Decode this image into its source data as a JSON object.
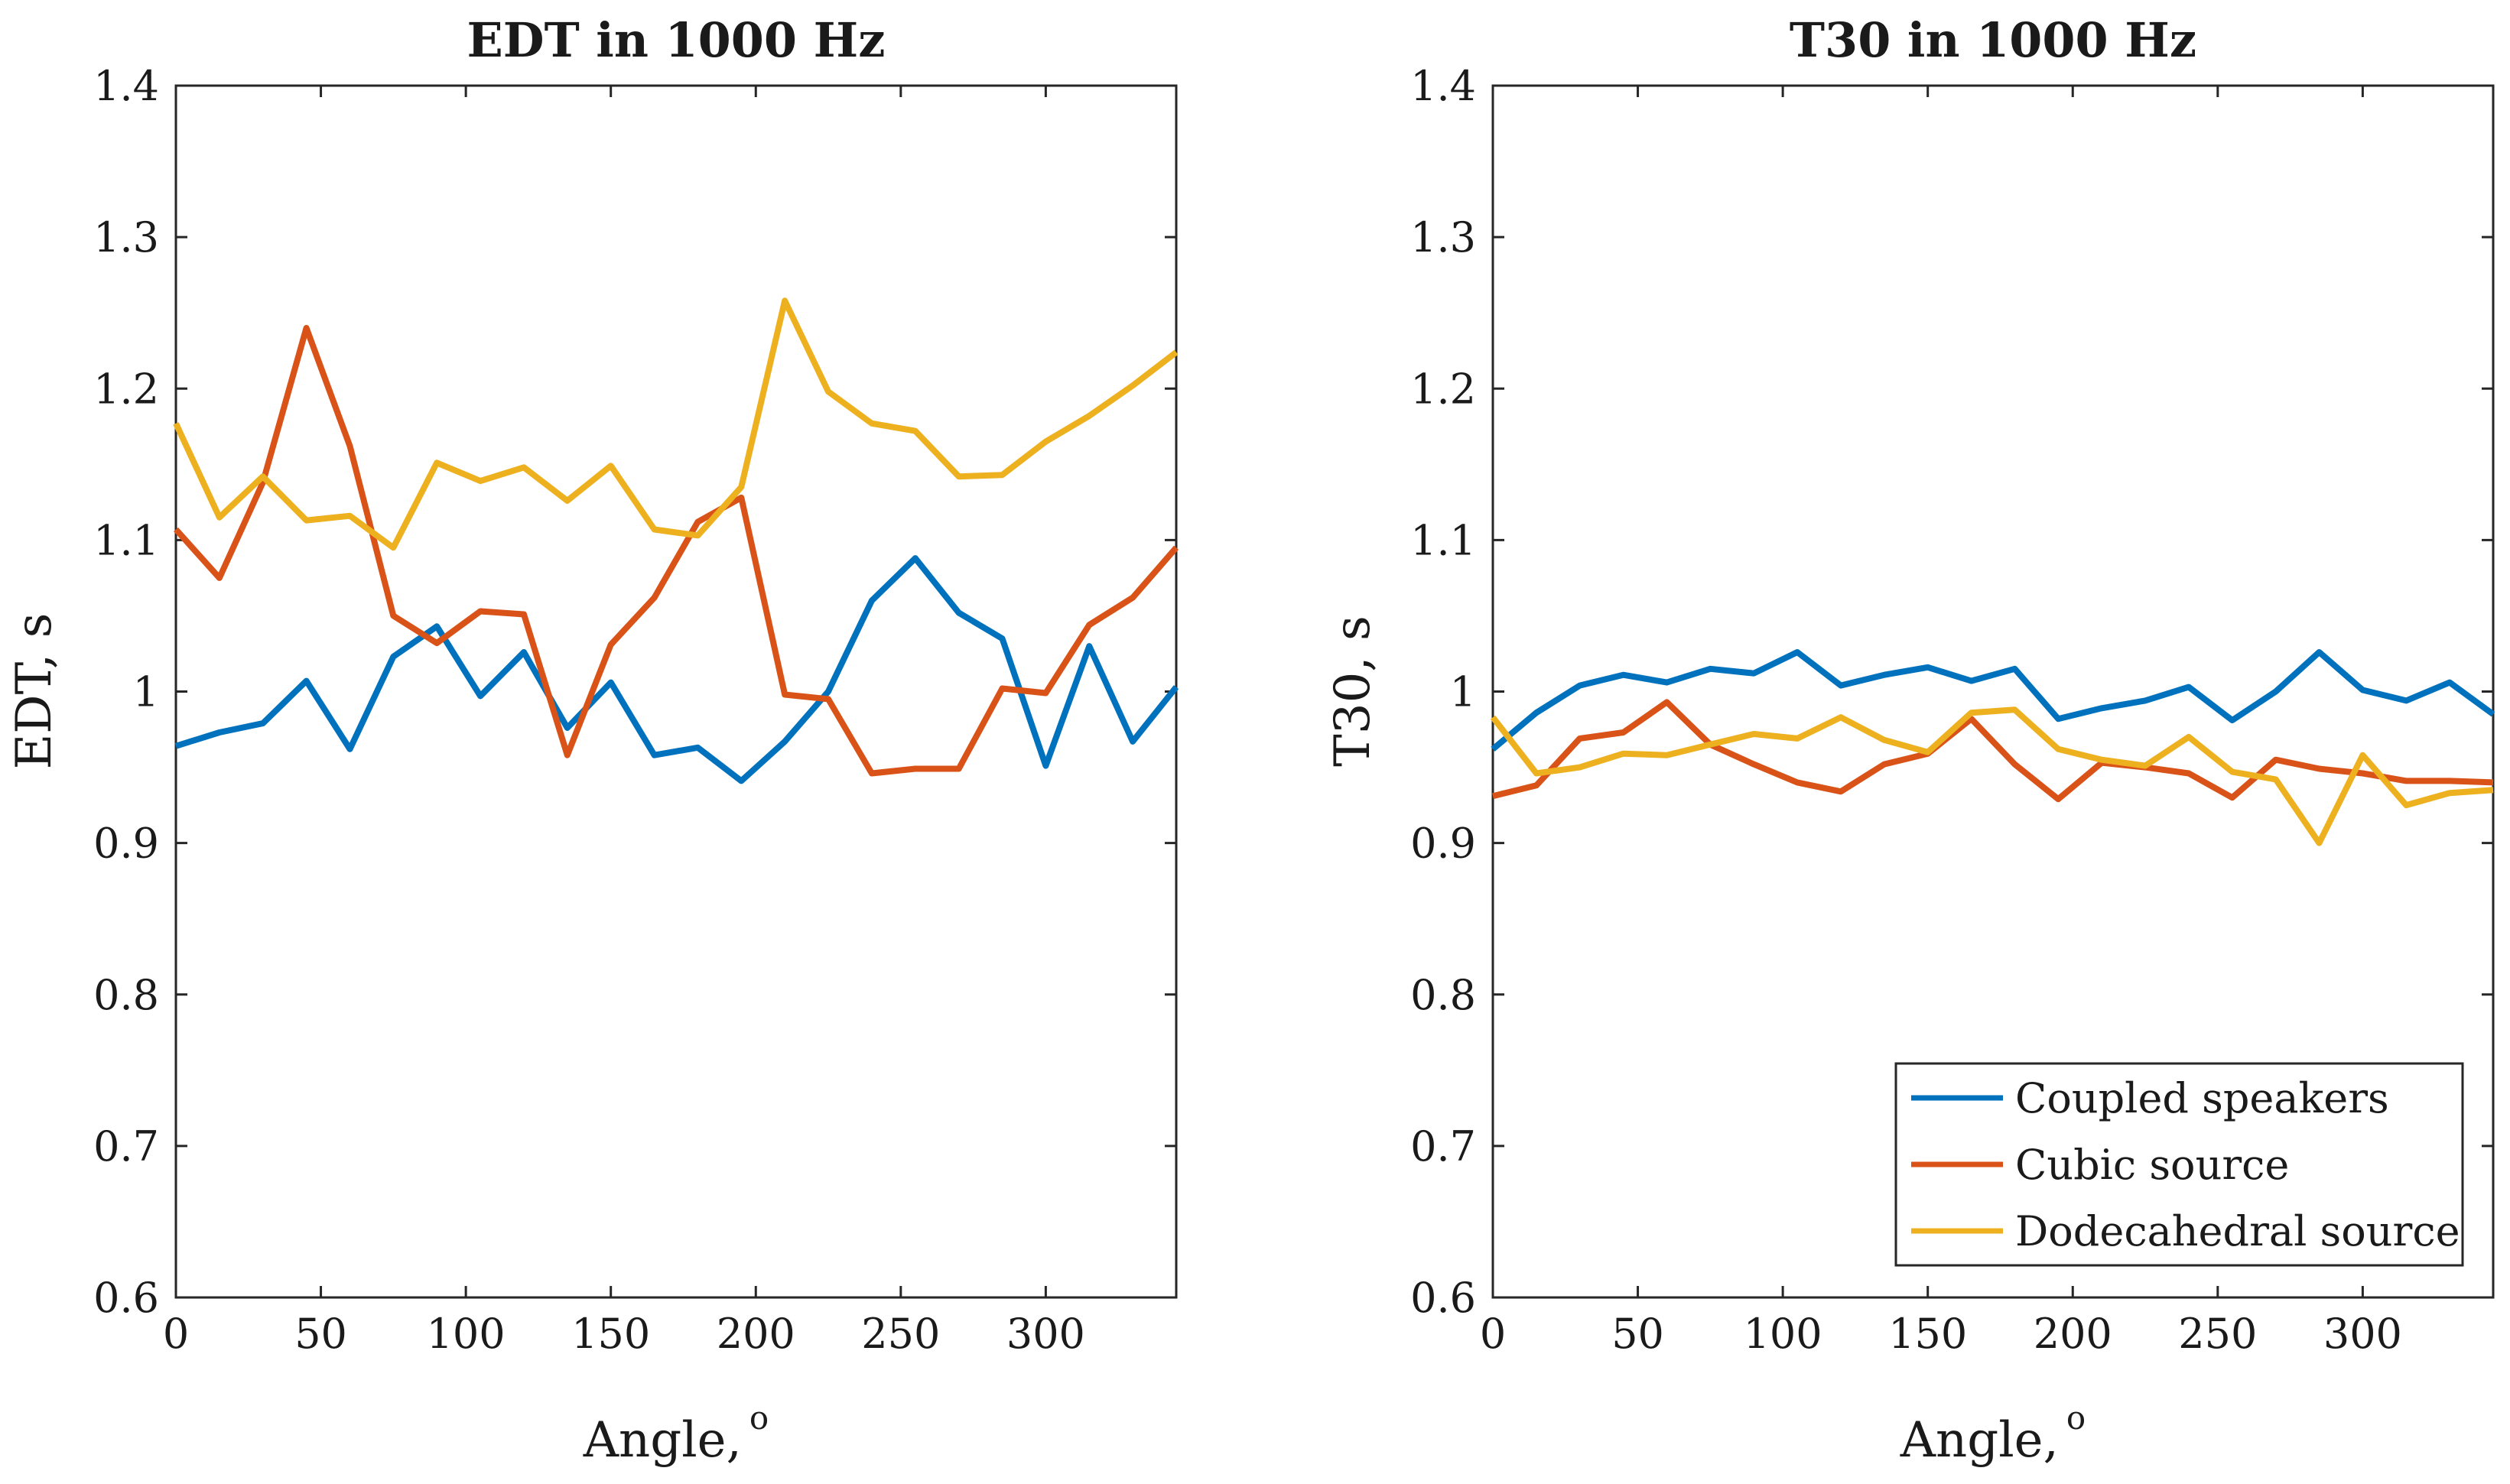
{
  "chart_data": [
    {
      "type": "line",
      "title": "EDT in 1000 Hz",
      "xlabel": "Angle,",
      "xlabel_superscript": "o",
      "ylabel": "EDT, s",
      "xlim": [
        0,
        345
      ],
      "ylim": [
        0.6,
        1.4
      ],
      "xticks": [
        0,
        50,
        100,
        150,
        200,
        250,
        300
      ],
      "yticks": [
        0.6,
        0.7,
        0.8,
        0.9,
        1,
        1.1,
        1.2,
        1.3,
        1.4
      ],
      "ytick_labels": [
        "0.6",
        "0.7",
        "0.8",
        "0.9",
        "1",
        "1.1",
        "1.2",
        "1.3",
        "1.4"
      ],
      "x": [
        0,
        15,
        30,
        45,
        60,
        75,
        90,
        105,
        120,
        135,
        150,
        165,
        180,
        195,
        210,
        225,
        240,
        255,
        270,
        285,
        300,
        315,
        330,
        345
      ],
      "series": [
        {
          "name": "Coupled speakers",
          "color": "#0072BD",
          "values": [
            0.964,
            0.973,
            0.979,
            1.007,
            0.962,
            1.023,
            1.043,
            0.997,
            1.026,
            0.976,
            1.006,
            0.958,
            0.963,
            0.941,
            0.967,
            1.0,
            1.06,
            1.088,
            1.052,
            1.035,
            0.951,
            1.03,
            0.967,
            1.003
          ]
        },
        {
          "name": "Cubic source",
          "color": "#D95319",
          "values": [
            1.107,
            1.075,
            1.138,
            1.24,
            1.162,
            1.05,
            1.032,
            1.053,
            1.051,
            0.958,
            1.031,
            1.062,
            1.112,
            1.128,
            0.998,
            0.995,
            0.946,
            0.949,
            0.949,
            1.002,
            0.999,
            1.044,
            1.062,
            1.095
          ]
        },
        {
          "name": "Dodecahedral source",
          "color": "#EDB120",
          "values": [
            1.177,
            1.115,
            1.142,
            1.113,
            1.116,
            1.095,
            1.151,
            1.139,
            1.148,
            1.126,
            1.149,
            1.107,
            1.103,
            1.135,
            1.258,
            1.198,
            1.177,
            1.172,
            1.142,
            1.143,
            1.165,
            1.182,
            1.202,
            1.224
          ]
        }
      ]
    },
    {
      "type": "line",
      "title": "T30 in 1000 Hz",
      "xlabel": "Angle,",
      "xlabel_superscript": "o",
      "ylabel": "T30, s",
      "xlim": [
        0,
        345
      ],
      "ylim": [
        0.6,
        1.4
      ],
      "xticks": [
        0,
        50,
        100,
        150,
        200,
        250,
        300
      ],
      "yticks": [
        0.6,
        0.7,
        0.8,
        0.9,
        1,
        1.1,
        1.2,
        1.3,
        1.4
      ],
      "ytick_labels": [
        "0.6",
        "0.7",
        "0.8",
        "0.9",
        "1",
        "1.1",
        "1.2",
        "1.3",
        "1.4"
      ],
      "legend": {
        "position": "bottom-right",
        "entries": [
          "Coupled speakers",
          "Cubic source",
          "Dodecahedral source"
        ]
      },
      "x": [
        0,
        15,
        30,
        45,
        60,
        75,
        90,
        105,
        120,
        135,
        150,
        165,
        180,
        195,
        210,
        225,
        240,
        255,
        270,
        285,
        300,
        315,
        330,
        345
      ],
      "series": [
        {
          "name": "Coupled speakers",
          "color": "#0072BD",
          "values": [
            0.962,
            0.986,
            1.004,
            1.011,
            1.006,
            1.015,
            1.012,
            1.026,
            1.004,
            1.011,
            1.016,
            1.007,
            1.015,
            0.982,
            0.989,
            0.994,
            1.003,
            0.981,
            1.0,
            1.026,
            1.001,
            0.994,
            1.006,
            0.985
          ]
        },
        {
          "name": "Cubic source",
          "color": "#D95319",
          "values": [
            0.931,
            0.938,
            0.969,
            0.973,
            0.993,
            0.965,
            0.952,
            0.94,
            0.934,
            0.952,
            0.959,
            0.982,
            0.952,
            0.929,
            0.953,
            0.95,
            0.946,
            0.93,
            0.955,
            0.949,
            0.946,
            0.941,
            0.941,
            0.94
          ]
        },
        {
          "name": "Dodecahedral source",
          "color": "#EDB120",
          "values": [
            0.983,
            0.946,
            0.95,
            0.959,
            0.958,
            0.965,
            0.972,
            0.969,
            0.983,
            0.968,
            0.96,
            0.986,
            0.988,
            0.962,
            0.955,
            0.951,
            0.97,
            0.947,
            0.942,
            0.9,
            0.958,
            0.925,
            0.933,
            0.935
          ]
        }
      ]
    }
  ]
}
